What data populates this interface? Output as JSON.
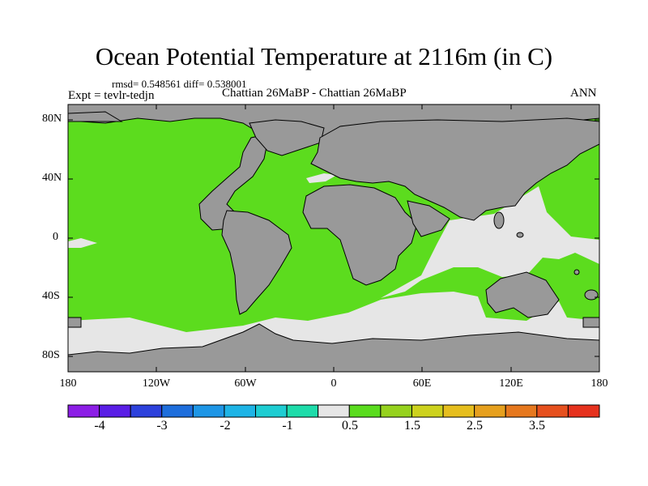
{
  "title": "Ocean Potential Temperature at 2116m (in C)",
  "stats": "rmsd= 0.548561 diff= 0.538001",
  "experiment": "Expt = tevlr-tedjn",
  "comparison": "Chattian  26MaBP - Chattian  26MaBP",
  "period": "ANN",
  "map": {
    "lat_labels": [
      "80N",
      "40N",
      "0",
      "40S",
      "80S"
    ],
    "lon_labels": [
      "180",
      "120W",
      "60W",
      "0",
      "60E",
      "120E",
      "180"
    ],
    "colors": {
      "land": "#999999",
      "ocean_positive": "#5cdc1e",
      "ocean_neutral": "#e6e6e6"
    }
  },
  "colorbar": {
    "colors": [
      "#8c1ee6",
      "#5a1ee6",
      "#2d41dc",
      "#1e6edc",
      "#1e96e6",
      "#1eb4e6",
      "#1ecdd2",
      "#1edcaa",
      "#e6e6e6",
      "#5adc1e",
      "#96d21e",
      "#cdd21e",
      "#e6be1e",
      "#e6a01e",
      "#e6781e",
      "#e6501e",
      "#e6321e"
    ],
    "labels": [
      "-4",
      "-3",
      "-2",
      "-1",
      "0.5",
      "1.5",
      "2.5",
      "3.5"
    ]
  }
}
